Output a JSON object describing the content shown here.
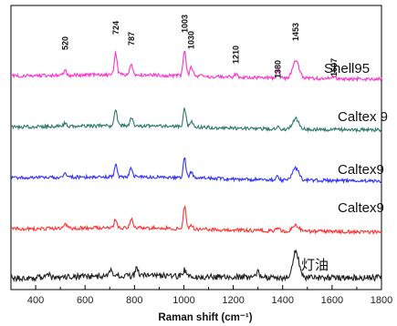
{
  "chart_data": {
    "type": "line",
    "title": "",
    "xlabel": "Raman shift (cm⁻¹)",
    "ylabel": "",
    "xlim": [
      300,
      1800
    ],
    "xticks": [
      400,
      600,
      800,
      1000,
      1200,
      1400,
      1600,
      1800
    ],
    "grid": false,
    "y_axis_ticks": false,
    "legend": "labels at right end of each trace",
    "peak_labels": [
      "520",
      "724",
      "787",
      "1003",
      "1030",
      "1210",
      "1380",
      "1453",
      "1607"
    ],
    "series": [
      {
        "name": "Shell95",
        "color": "#ff33cc",
        "baseline": 0.86,
        "peaks": [
          [
            520,
            0.45
          ],
          [
            724,
            2.2
          ],
          [
            787,
            1.1
          ],
          [
            1003,
            2.6
          ],
          [
            1030,
            0.9
          ],
          [
            1210,
            0.3
          ],
          [
            1380,
            0.8
          ],
          [
            1453,
            1.8
          ],
          [
            1607,
            0.2
          ]
        ]
      },
      {
        "name": "Caltex 9",
        "color": "#2e7a6a",
        "baseline": 0.64,
        "peaks": [
          [
            520,
            0.35
          ],
          [
            724,
            1.7
          ],
          [
            787,
            0.9
          ],
          [
            1003,
            1.8
          ],
          [
            1030,
            0.5
          ],
          [
            1380,
            0.3
          ],
          [
            1453,
            1.1
          ]
        ]
      },
      {
        "name": "Caltex9",
        "color": "#3333ff",
        "baseline": 0.43,
        "peaks": [
          [
            520,
            0.4
          ],
          [
            724,
            1.2
          ],
          [
            787,
            0.9
          ],
          [
            1003,
            1.9
          ],
          [
            1030,
            0.6
          ],
          [
            1380,
            0.4
          ],
          [
            1453,
            1.2
          ]
        ]
      },
      {
        "name": "Caltex9",
        "color": "#ff3333",
        "baseline": 0.22,
        "peaks": [
          [
            520,
            0.45
          ],
          [
            724,
            0.9
          ],
          [
            787,
            0.9
          ],
          [
            1003,
            2.2
          ],
          [
            1030,
            0.4
          ],
          [
            1380,
            0.4
          ],
          [
            1453,
            0.6
          ]
        ]
      },
      {
        "name": "灯油",
        "color": "#222222",
        "baseline": 0.0,
        "peaks": [
          [
            450,
            0.4
          ],
          [
            700,
            0.7
          ],
          [
            810,
            0.8
          ],
          [
            1003,
            0.6
          ],
          [
            1300,
            0.8
          ],
          [
            1453,
            2.6
          ]
        ]
      }
    ]
  }
}
